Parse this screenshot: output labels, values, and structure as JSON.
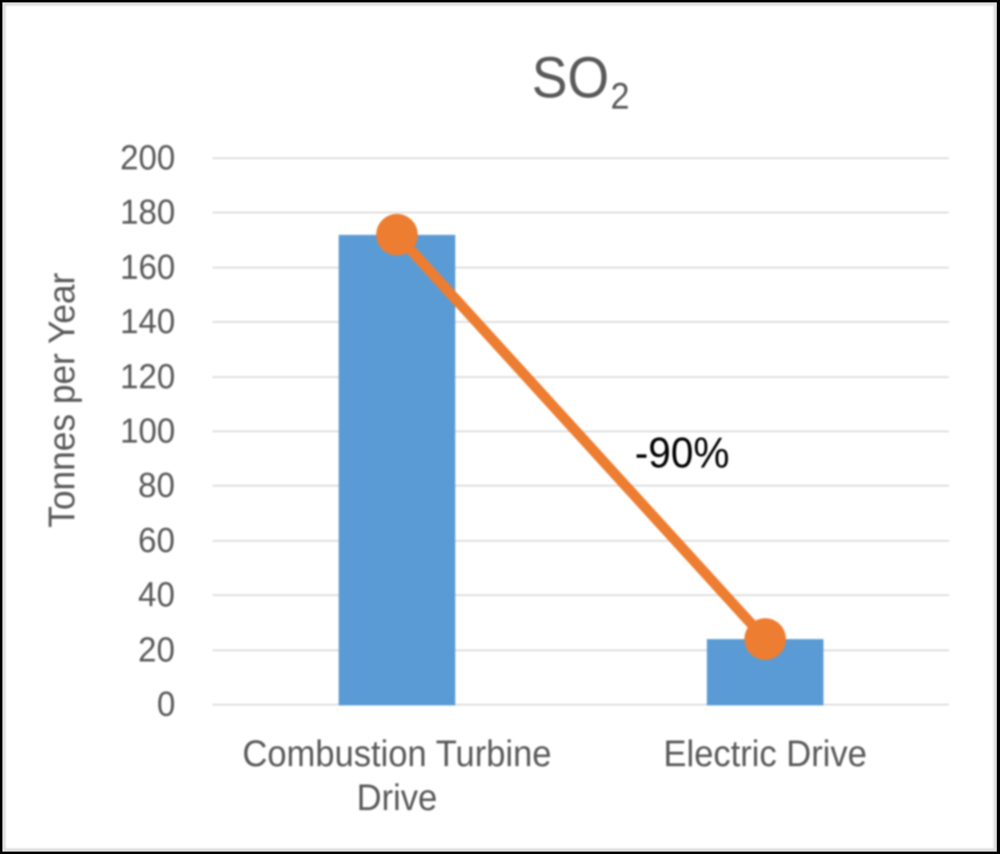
{
  "chart_data": {
    "type": "bar",
    "title": "SO2",
    "title_parts": {
      "base": "SO",
      "subscript": "2"
    },
    "ylabel": "Tonnes per Year",
    "xlabel": "",
    "categories": [
      "Combustion Turbine Drive",
      "Electric Drive"
    ],
    "series": [
      {
        "type": "bar",
        "values": [
          172,
          24
        ],
        "color": "#5B9BD5"
      },
      {
        "type": "line",
        "values": [
          172,
          24
        ],
        "color": "#ED7D31",
        "marker": "circle"
      }
    ],
    "annotation": {
      "text": "-90%"
    },
    "ylim": [
      0,
      200
    ],
    "ytick_step": 20,
    "yticks": [
      "0",
      "20",
      "40",
      "60",
      "80",
      "100",
      "120",
      "140",
      "160",
      "180",
      "200"
    ],
    "grid": "horizontal",
    "legend": "none",
    "colors": {
      "axis_text": "#595959",
      "title_text": "#595959",
      "annotation_text": "#000000",
      "gridline": "#D9D9D9",
      "chart_background": "#FFFFFF",
      "inner_border": "#DCDCDC",
      "outer_border": "#000000"
    }
  }
}
